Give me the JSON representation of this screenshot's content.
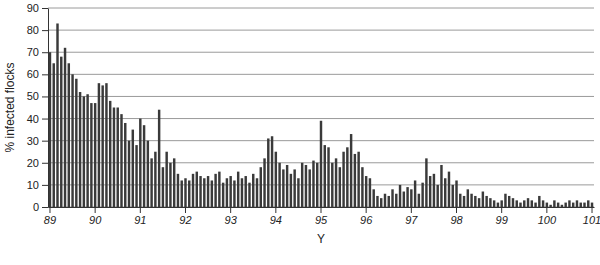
{
  "chart_data": {
    "type": "bar",
    "x_label": "Y",
    "y_label": "% infected flocks",
    "categories": [
      "89",
      null,
      null,
      null,
      null,
      null,
      null,
      null,
      null,
      null,
      null,
      null,
      "90",
      null,
      null,
      null,
      null,
      null,
      null,
      null,
      null,
      null,
      null,
      null,
      "91",
      null,
      null,
      null,
      null,
      null,
      null,
      null,
      null,
      null,
      null,
      null,
      "92",
      null,
      null,
      null,
      null,
      null,
      null,
      null,
      null,
      null,
      null,
      null,
      "93",
      null,
      null,
      null,
      null,
      null,
      null,
      null,
      null,
      null,
      null,
      null,
      "94",
      null,
      null,
      null,
      null,
      null,
      null,
      null,
      null,
      null,
      null,
      null,
      "95",
      null,
      null,
      null,
      null,
      null,
      null,
      null,
      null,
      null,
      null,
      null,
      "96",
      null,
      null,
      null,
      null,
      null,
      null,
      null,
      null,
      null,
      null,
      null,
      "97",
      null,
      null,
      null,
      null,
      null,
      null,
      null,
      null,
      null,
      null,
      null,
      "98",
      null,
      null,
      null,
      null,
      null,
      null,
      null,
      null,
      null,
      null,
      null,
      "99",
      null,
      null,
      null,
      null,
      null,
      null,
      null,
      null,
      null,
      null,
      null,
      "100",
      null,
      null,
      null,
      null,
      null,
      null,
      null,
      null,
      null,
      null,
      null,
      "101"
    ],
    "values": [
      70,
      65,
      83,
      68,
      72,
      65,
      60,
      58,
      52,
      50,
      51,
      47,
      47,
      56,
      55,
      56,
      48,
      45,
      45,
      42,
      38,
      30,
      35,
      28,
      40,
      37,
      30,
      22,
      25,
      44,
      18,
      25,
      20,
      22,
      15,
      12,
      13,
      12,
      15,
      16,
      14,
      13,
      14,
      12,
      15,
      16,
      11,
      13,
      14,
      12,
      16,
      13,
      14,
      11,
      15,
      13,
      18,
      22,
      31,
      32,
      25,
      20,
      17,
      19,
      15,
      17,
      13,
      20,
      19,
      17,
      21,
      20,
      39,
      28,
      27,
      20,
      22,
      18,
      25,
      27,
      33,
      24,
      25,
      18,
      14,
      13,
      8,
      5,
      4,
      6,
      5,
      8,
      6,
      10,
      7,
      9,
      8,
      12,
      6,
      11,
      22,
      14,
      15,
      10,
      19,
      13,
      16,
      10,
      12,
      6,
      5,
      8,
      6,
      5,
      4,
      7,
      5,
      4,
      3,
      2,
      3,
      6,
      5,
      4,
      3,
      2,
      3,
      4,
      3,
      2,
      5,
      3,
      2,
      1,
      3,
      2,
      1,
      2,
      3,
      2,
      3,
      2,
      2,
      3,
      2
    ],
    "color": "#3a3a3a",
    "ylim": [
      0,
      90
    ],
    "yticks": [
      0,
      10,
      20,
      30,
      40,
      50,
      60,
      70,
      80,
      90
    ],
    "grid": true
  }
}
